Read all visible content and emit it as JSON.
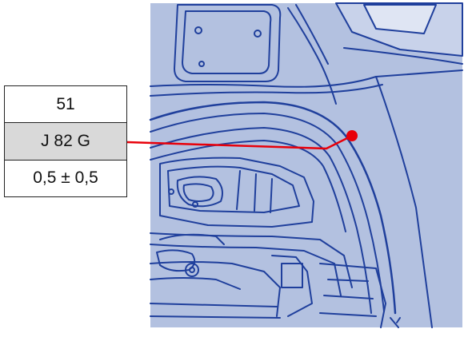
{
  "label": {
    "number": "51",
    "code": "J 82 G",
    "tolerance": "0,5 ± 0,5"
  },
  "colors": {
    "drawing_bg": "#b3c1e0",
    "line_color": "#1f3f9c",
    "leader_color": "#e8000a",
    "cell_highlight": "#d9d9d9"
  }
}
